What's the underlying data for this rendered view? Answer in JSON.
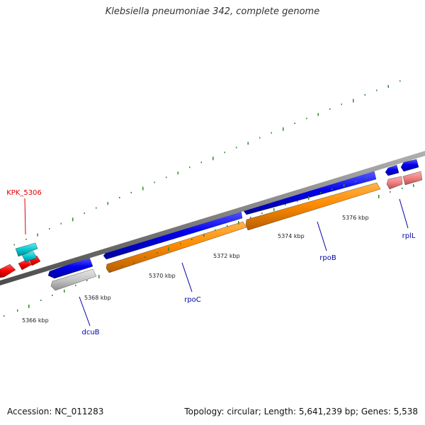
{
  "title": "Klebsiella pneumoniae 342, complete genome",
  "footer": {
    "accession": "Accession: NC_011283",
    "summary": "Topology: circular; Length: 5,641,239 bp; Genes: 5,538"
  },
  "colors": {
    "backbone": "#808080",
    "tick": "#2e8b2e",
    "cds_blue": "#0000ee",
    "cds_orange": "#ff8c00",
    "cds_gray": "#bdbdbd",
    "cds_cyan": "#00c8d2",
    "cds_red": "#ff0000",
    "cds_pink": "#f08080",
    "label_blue": "#0000aa",
    "label_red": "#dd0000"
  },
  "ruler": {
    "labels": [
      "5366 kbp",
      "5368 kbp",
      "5370 kbp",
      "5372 kbp",
      "5374 kbp",
      "5376 kbp"
    ]
  },
  "genes": [
    {
      "name": "dcuB"
    },
    {
      "name": "rpoC"
    },
    {
      "name": "rpoB"
    },
    {
      "name": "rplL"
    },
    {
      "name": "KPK_5306"
    }
  ]
}
